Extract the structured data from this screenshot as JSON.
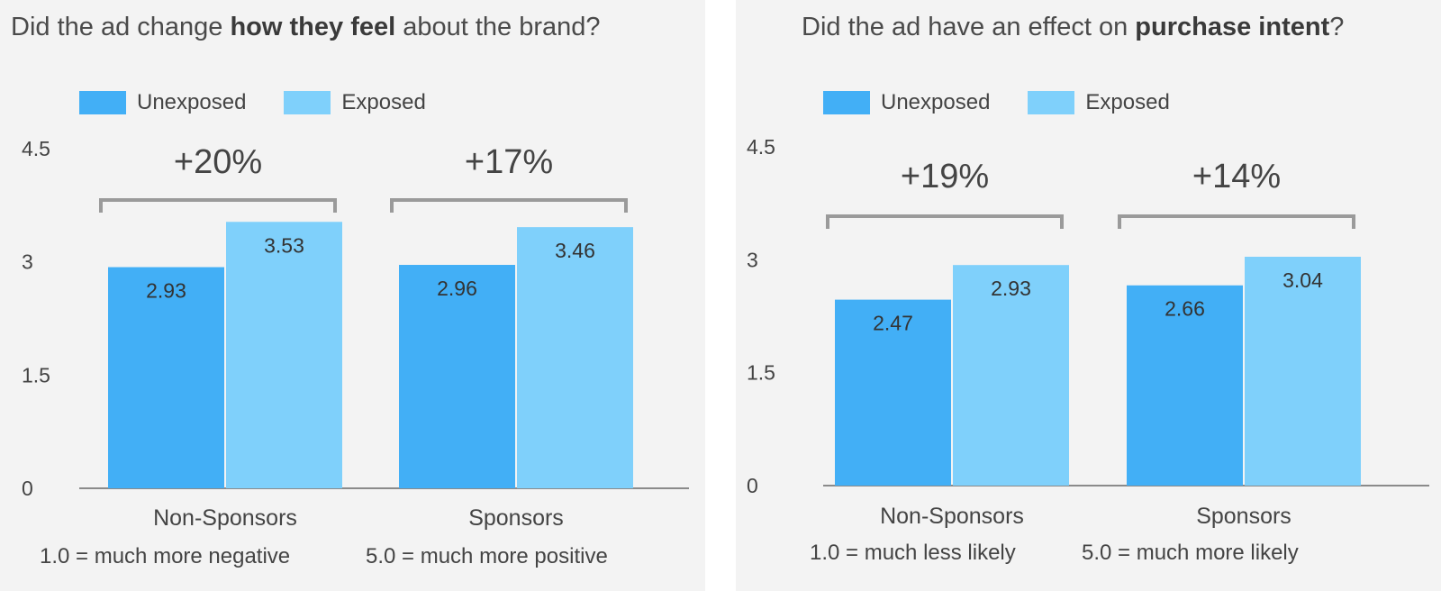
{
  "colors": {
    "unexposed": "#42aff6",
    "exposed": "#7fd0fb",
    "bracket": "#9a9a9a",
    "axis": "#8a8a8a"
  },
  "chart_data": [
    {
      "type": "bar",
      "title": {
        "parts": [
          {
            "text": "Did the ad change ",
            "bold": false
          },
          {
            "text": "how they feel",
            "bold": true
          },
          {
            "text": " about the brand?",
            "bold": false
          }
        ]
      },
      "categories": [
        "Non-Sponsors",
        "Sponsors"
      ],
      "series": [
        {
          "name": "Unexposed",
          "values": [
            2.93,
            2.96
          ]
        },
        {
          "name": "Exposed",
          "values": [
            3.53,
            3.46
          ]
        }
      ],
      "value_labels": {
        "Unexposed": [
          "2.93",
          "2.96"
        ],
        "Exposed": [
          "3.53",
          "3.46"
        ]
      },
      "lifts": [
        "+20%",
        "+17%"
      ],
      "ylim": [
        0,
        4.5
      ],
      "yticks": [
        "0",
        "1.5",
        "3",
        "4.5"
      ],
      "ytick_values": [
        0,
        1.5,
        3,
        4.5
      ],
      "legend_position": "top-left",
      "notes": [
        "1.0 = much more negative",
        "5.0 = much more positive"
      ]
    },
    {
      "type": "bar",
      "title": {
        "parts": [
          {
            "text": "Did the ad have an effect on ",
            "bold": false
          },
          {
            "text": "purchase intent",
            "bold": true
          },
          {
            "text": "?",
            "bold": false
          }
        ]
      },
      "categories": [
        "Non-Sponsors",
        "Sponsors"
      ],
      "series": [
        {
          "name": "Unexposed",
          "values": [
            2.47,
            2.66
          ]
        },
        {
          "name": "Exposed",
          "values": [
            2.93,
            3.04
          ]
        }
      ],
      "value_labels": {
        "Unexposed": [
          "2.47",
          "2.66"
        ],
        "Exposed": [
          "2.93",
          "3.04"
        ]
      },
      "lifts": [
        "+19%",
        "+14%"
      ],
      "ylim": [
        0,
        4.5
      ],
      "yticks": [
        "0",
        "1.5",
        "3",
        "4.5"
      ],
      "ytick_values": [
        0,
        1.5,
        3,
        4.5
      ],
      "legend_position": "top-left",
      "notes": [
        "1.0 = much less likely",
        "5.0 = much more likely"
      ]
    }
  ]
}
